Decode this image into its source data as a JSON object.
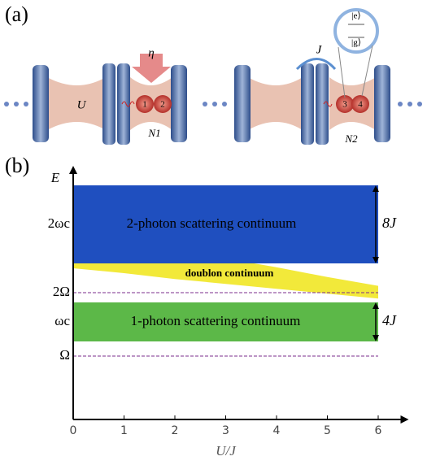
{
  "panel_a": {
    "label": "(a)",
    "U": "U",
    "eta": "η",
    "atoms": [
      "1",
      "2",
      "3",
      "4"
    ],
    "N1": "N1",
    "N2": "N2",
    "J": "J",
    "e": "|e⟩",
    "g": "|g⟩"
  },
  "panel_b_label": "(b)",
  "chart_data": {
    "type": "band",
    "xlabel": "U/J",
    "ylabel": "E",
    "x": [
      0,
      1,
      2,
      3,
      4,
      5,
      6
    ],
    "series": [
      {
        "name": "doublon continuum",
        "color": "#f2e93a",
        "upper": [
          19.3,
          18.4,
          17.4,
          16.5,
          15.6,
          14.6,
          13.7
        ],
        "lower": [
          15.5,
          15.0,
          14.4,
          13.9,
          13.4,
          12.9,
          12.4
        ]
      },
      {
        "name": "2-photon scattering continuum",
        "color": "#1f4fbf",
        "upper": [
          24,
          24,
          24,
          24,
          24,
          24,
          24
        ],
        "lower": [
          16,
          16,
          16,
          16,
          16,
          16,
          16
        ]
      },
      {
        "name": "1-photon scattering continuum",
        "color": "#5cb848",
        "upper": [
          12,
          12,
          12,
          12,
          12,
          12,
          12
        ],
        "lower": [
          8,
          8,
          8,
          8,
          8,
          8,
          8
        ]
      }
    ],
    "annotations": [
      {
        "text": "8J",
        "from": 16,
        "to": 24
      },
      {
        "text": "4J",
        "from": 8,
        "to": 12
      }
    ],
    "reference_lines": [
      13,
      6.5
    ],
    "reference_color": "#7b2d8e",
    "xlim": [
      0,
      6.6
    ],
    "ylim": [
      0,
      26
    ],
    "xticks": [
      0,
      1,
      2,
      3,
      4,
      5,
      6
    ],
    "yticks": [
      {
        "value": 20,
        "label": "2ωc"
      },
      {
        "value": 13,
        "label": "2Ω"
      },
      {
        "value": 10,
        "label": "ωc"
      },
      {
        "value": 6.5,
        "label": "Ω"
      }
    ]
  }
}
